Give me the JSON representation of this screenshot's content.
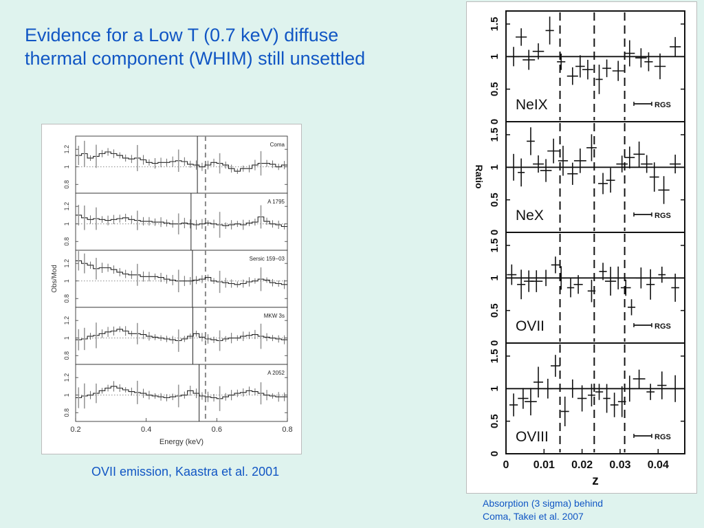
{
  "slide": {
    "title_lines": [
      "Evidence for a Low T (0.7 keV) diffuse",
      "thermal component (WHIM) still unsettled"
    ],
    "left_caption": "OVII emission, Kaastra et al. 2001",
    "right_caption_lines": [
      "Absorption (3 sigma) behind",
      "Coma, Takei et al. 2007"
    ]
  },
  "colors": {
    "text_accent": "#1156c4",
    "background": "#dff3ee"
  },
  "chart_data": [
    {
      "type": "line",
      "xlabel": "Energy (keV)",
      "ylabel": "Obs/Mod",
      "xlim": [
        0.2,
        0.8
      ],
      "ylim": [
        0.7,
        1.35
      ],
      "xticks": [
        "0.2",
        "0.4",
        "0.6",
        "0.8"
      ],
      "yticks": [
        "0.8",
        "1",
        "1.2"
      ],
      "reference_line_y": 1,
      "panels": [
        {
          "name": "Coma",
          "solid_line_x": 0.545,
          "dashed_line_x": 0.568,
          "values": [
            1.13,
            1.15,
            1.1,
            1.12,
            1.15,
            1.17,
            1.15,
            1.13,
            1.1,
            1.09,
            1.1,
            1.08,
            1.05,
            1.04,
            1.05,
            1.05,
            1.06,
            1.07,
            1.06,
            1.03,
            1.02,
            1.0,
            1.02,
            1.05,
            1.04,
            1.02,
            0.98,
            0.95,
            0.98,
            0.98,
            1.02,
            1.04,
            1.04,
            1.03,
            1.0,
            1.02
          ]
        },
        {
          "name": "A 1795",
          "solid_line_x": 0.527,
          "dashed_line_x": 0.568,
          "values": [
            1.1,
            1.07,
            1.05,
            1.06,
            1.05,
            1.04,
            1.05,
            1.06,
            1.07,
            1.05,
            1.04,
            1.03,
            1.03,
            1.02,
            1.02,
            1.01,
            1.0,
            1.0,
            1.01,
            1.0,
            0.99,
            1.0,
            1.01,
            1.0,
            0.99,
            0.98,
            0.99,
            1.0,
            0.99,
            1.01,
            1.02,
            1.08,
            1.03,
            1.0,
            0.99,
            0.97
          ]
        },
        {
          "name": "Sersic 159−03",
          "solid_line_x": 0.531,
          "dashed_line_x": 0.568,
          "values": [
            1.23,
            1.2,
            1.18,
            1.14,
            1.15,
            1.15,
            1.13,
            1.1,
            1.08,
            1.07,
            1.07,
            1.05,
            1.05,
            1.05,
            1.04,
            1.02,
            1.01,
            1.0,
            1.0,
            1.0,
            1.01,
            1.02,
            1.04,
            1.0,
            0.99,
            0.98,
            0.97,
            0.96,
            0.97,
            0.99,
            1.0,
            1.02,
            1.01,
            0.98,
            0.97,
            0.96
          ]
        },
        {
          "name": "MKW 3s",
          "solid_line_x": 0.532,
          "dashed_line_x": 0.568,
          "values": [
            0.98,
            0.99,
            1.02,
            1.03,
            1.05,
            1.07,
            1.08,
            1.1,
            1.08,
            1.05,
            1.05,
            1.04,
            1.02,
            1.01,
            1.0,
            0.99,
            0.98,
            0.97,
            0.99,
            1.02,
            1.05,
            1.01,
            0.99,
            0.98,
            0.97,
            0.99,
            1.0,
            1.0,
            1.02,
            1.03,
            1.04,
            1.02,
            1.01,
            1.0,
            0.99,
            0.98
          ]
        },
        {
          "name": "A 2052",
          "solid_line_x": 0.55,
          "dashed_line_x": 0.568,
          "values": [
            0.97,
            0.99,
            1.0,
            1.02,
            1.05,
            1.08,
            1.1,
            1.08,
            1.06,
            1.04,
            1.03,
            1.02,
            1.0,
            0.99,
            0.98,
            0.97,
            0.98,
            0.99,
            1.0,
            1.05,
            1.02,
            0.99,
            0.98,
            0.97,
            0.96,
            0.98,
            1.0,
            1.02,
            1.03,
            1.05,
            1.04,
            1.02,
            1.0,
            0.99,
            0.98,
            0.98
          ]
        }
      ]
    },
    {
      "type": "scatter",
      "xlabel": "z",
      "ylabel": "Ratio",
      "xlim": [
        0,
        0.047
      ],
      "ylim": [
        0,
        1.7
      ],
      "xticks": [
        "0",
        "0.01",
        "0.02",
        "0.03",
        "0.04"
      ],
      "yticks": [
        "0",
        "0.5",
        "1",
        "1.5"
      ],
      "reference_line_y": 1,
      "dashed_lines_x": [
        0.0142,
        0.0232,
        0.0312
      ],
      "resolution_label": "RGS",
      "panels": [
        {
          "name": "NeIX",
          "yticks": [
            "0",
            "0.5",
            "1",
            "1.5"
          ],
          "points": [
            [
              0.002,
              1.0
            ],
            [
              0.004,
              1.3
            ],
            [
              0.006,
              0.95
            ],
            [
              0.0085,
              1.08
            ],
            [
              0.0115,
              1.4
            ],
            [
              0.0145,
              0.92
            ],
            [
              0.0175,
              0.7
            ],
            [
              0.0195,
              0.85
            ],
            [
              0.0215,
              0.8
            ],
            [
              0.0245,
              0.65
            ],
            [
              0.0265,
              0.82
            ],
            [
              0.0295,
              0.78
            ],
            [
              0.0325,
              1.05
            ],
            [
              0.0355,
              0.98
            ],
            [
              0.0375,
              0.92
            ],
            [
              0.0405,
              0.85
            ],
            [
              0.0445,
              1.15
            ]
          ]
        },
        {
          "name": "NeX",
          "yticks": [
            "0",
            "0.5",
            "1",
            "1.5"
          ],
          "points": [
            [
              0.002,
              1.0
            ],
            [
              0.004,
              0.92
            ],
            [
              0.0065,
              1.4
            ],
            [
              0.0085,
              1.05
            ],
            [
              0.0105,
              0.95
            ],
            [
              0.0125,
              1.25
            ],
            [
              0.015,
              1.1
            ],
            [
              0.0175,
              0.9
            ],
            [
              0.0195,
              1.1
            ],
            [
              0.0225,
              1.3
            ],
            [
              0.0255,
              0.75
            ],
            [
              0.0275,
              0.8
            ],
            [
              0.0305,
              1.05
            ],
            [
              0.0325,
              1.15
            ],
            [
              0.035,
              1.2
            ],
            [
              0.037,
              1.05
            ],
            [
              0.039,
              0.85
            ],
            [
              0.0415,
              0.65
            ],
            [
              0.0445,
              1.05
            ]
          ]
        },
        {
          "name": "OVII",
          "yticks": [
            "0",
            "0.5",
            "1",
            "1.5"
          ],
          "points": [
            [
              0.0015,
              1.05
            ],
            [
              0.004,
              0.9
            ],
            [
              0.006,
              0.95
            ],
            [
              0.008,
              0.95
            ],
            [
              0.0105,
              1.0
            ],
            [
              0.013,
              1.2
            ],
            [
              0.0145,
              1.0
            ],
            [
              0.017,
              0.85
            ],
            [
              0.019,
              0.9
            ],
            [
              0.0225,
              0.8
            ],
            [
              0.0255,
              1.1
            ],
            [
              0.0275,
              0.95
            ],
            [
              0.0295,
              1.0
            ],
            [
              0.0315,
              0.85
            ],
            [
              0.033,
              0.55
            ],
            [
              0.0355,
              1.0
            ],
            [
              0.038,
              0.9
            ],
            [
              0.041,
              1.05
            ],
            [
              0.0445,
              0.85
            ]
          ]
        },
        {
          "name": "OVIII",
          "yticks": [
            "0",
            "0.5",
            "1",
            "1.5"
          ],
          "points": [
            [
              0.002,
              0.75
            ],
            [
              0.0045,
              0.85
            ],
            [
              0.0065,
              0.8
            ],
            [
              0.0085,
              1.1
            ],
            [
              0.011,
              1.0
            ],
            [
              0.013,
              1.35
            ],
            [
              0.0155,
              0.65
            ],
            [
              0.0175,
              1.0
            ],
            [
              0.02,
              0.85
            ],
            [
              0.0225,
              0.9
            ],
            [
              0.0245,
              0.95
            ],
            [
              0.0265,
              0.85
            ],
            [
              0.0285,
              0.75
            ],
            [
              0.0305,
              0.8
            ],
            [
              0.0325,
              1.0
            ],
            [
              0.035,
              1.15
            ],
            [
              0.038,
              0.95
            ],
            [
              0.041,
              1.05
            ],
            [
              0.0445,
              1.0
            ]
          ]
        }
      ]
    }
  ]
}
